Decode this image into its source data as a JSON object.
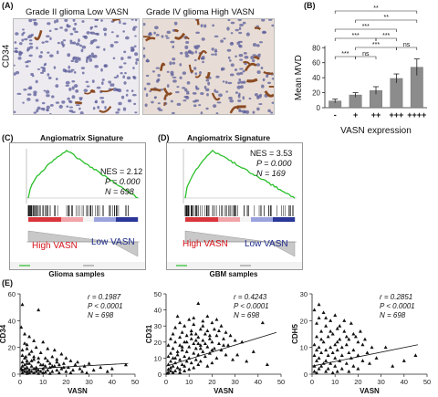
{
  "panels": {
    "A": {
      "letter": "(A)",
      "left_title": "Grade II glioma Low VASN",
      "right_title": "Grade IV glioma High VASN",
      "ylabel": "CD34"
    },
    "B": {
      "letter": "(B)"
    },
    "C": {
      "letter": "(C)",
      "title": "Angiomatrix Signature",
      "nes": "NES = 2.12",
      "p": "P = 0.000",
      "n": "N = 698",
      "high": "High VASN",
      "low": "Low VASN",
      "sample": "Glioma samples"
    },
    "D": {
      "letter": "(D)",
      "title": "Angiomatrix Signature",
      "nes": "NES = 3.53",
      "p": "P = 0.000",
      "n": "N = 169",
      "high": "High VASN",
      "low": "Low VASN",
      "sample": "GBM samples"
    },
    "E": {
      "letter": "(E)"
    }
  },
  "chart_data": [
    {
      "type": "bar",
      "categories": [
        "-",
        "+",
        "++",
        "+++",
        "++++"
      ],
      "values": [
        9,
        17,
        23,
        39,
        54
      ],
      "errors": [
        2.5,
        3,
        5,
        6,
        11
      ],
      "ylabel": "Mean MVD",
      "xlabel": "VASN expression",
      "ylim": [
        0,
        80
      ],
      "yticks": [
        0,
        20,
        40,
        60,
        80
      ],
      "significance": [
        {
          "from": 0,
          "to": 1,
          "label": "***"
        },
        {
          "from": 1,
          "to": 2,
          "label": "ns"
        },
        {
          "from": 1,
          "to": 3,
          "label": "***"
        },
        {
          "from": 0,
          "to": 2,
          "label": "***"
        },
        {
          "from": 2,
          "to": 3,
          "label": "***"
        },
        {
          "from": 3,
          "to": 4,
          "label": "ns"
        },
        {
          "from": 0,
          "to": 3,
          "label": "***"
        },
        {
          "from": 1,
          "to": 4,
          "label": "**"
        },
        {
          "from": 0,
          "to": 4,
          "label": "**"
        }
      ]
    },
    {
      "type": "scatter",
      "xlabel": "VASN",
      "ylabel": "CD34",
      "xlim": [
        0,
        50
      ],
      "ylim": [
        0,
        60
      ],
      "xticks": [
        0,
        10,
        20,
        30,
        40,
        50
      ],
      "yticks": [
        0,
        20,
        40,
        60
      ],
      "r": "r = 0.1987",
      "p": "P < 0.0001",
      "n": "N = 698",
      "fit": [
        [
          0,
          3.5
        ],
        [
          47,
          8
        ]
      ],
      "points": [
        [
          1,
          52
        ],
        [
          8,
          48
        ],
        [
          0.5,
          35
        ],
        [
          2,
          30
        ],
        [
          4,
          28
        ],
        [
          6,
          25
        ],
        [
          10,
          24
        ],
        [
          3,
          22
        ],
        [
          7,
          20
        ],
        [
          12,
          19
        ],
        [
          15,
          18
        ],
        [
          5,
          17
        ],
        [
          9,
          16
        ],
        [
          18,
          15
        ],
        [
          1,
          14
        ],
        [
          2.5,
          13
        ],
        [
          14,
          13
        ],
        [
          20,
          12
        ],
        [
          11,
          12
        ],
        [
          6,
          11
        ],
        [
          16,
          11
        ],
        [
          22,
          10
        ],
        [
          3,
          10
        ],
        [
          8,
          9
        ],
        [
          25,
          9
        ],
        [
          1,
          9
        ],
        [
          13,
          8
        ],
        [
          4,
          8
        ],
        [
          19,
          8
        ],
        [
          30,
          8
        ],
        [
          2,
          7
        ],
        [
          9,
          7
        ],
        [
          17,
          7
        ],
        [
          24,
          7
        ],
        [
          5,
          6
        ],
        [
          11,
          6
        ],
        [
          28,
          6
        ],
        [
          1,
          6
        ],
        [
          15,
          6
        ],
        [
          3,
          5
        ],
        [
          7,
          5
        ],
        [
          21,
          5
        ],
        [
          13,
          5
        ],
        [
          35,
          5
        ],
        [
          2,
          4
        ],
        [
          6,
          4
        ],
        [
          10,
          4
        ],
        [
          18,
          4
        ],
        [
          26,
          4
        ],
        [
          0.5,
          4
        ],
        [
          4,
          3
        ],
        [
          8,
          3
        ],
        [
          12,
          3
        ],
        [
          16,
          3
        ],
        [
          23,
          3
        ],
        [
          32,
          3
        ],
        [
          1,
          3
        ],
        [
          3,
          2
        ],
        [
          5,
          2
        ],
        [
          9,
          2
        ],
        [
          14,
          2
        ],
        [
          20,
          2
        ],
        [
          27,
          2
        ],
        [
          2,
          2
        ],
        [
          7,
          2
        ],
        [
          11,
          1.5
        ],
        [
          6,
          1
        ],
        [
          1,
          1
        ],
        [
          4,
          1
        ],
        [
          10,
          1
        ],
        [
          17,
          1
        ],
        [
          22,
          1
        ],
        [
          3,
          0.5
        ],
        [
          8,
          0.5
        ],
        [
          13,
          0.5
        ],
        [
          29,
          1
        ],
        [
          40,
          4
        ],
        [
          46,
          7
        ],
        [
          38,
          2
        ],
        [
          2,
          12
        ],
        [
          4,
          15
        ],
        [
          6,
          13
        ],
        [
          8,
          12
        ],
        [
          5,
          10
        ],
        [
          12,
          10
        ],
        [
          16,
          9
        ],
        [
          3,
          8
        ],
        [
          10,
          7
        ],
        [
          14,
          6
        ],
        [
          19,
          5
        ],
        [
          7,
          4
        ],
        [
          1,
          18
        ],
        [
          3,
          19
        ],
        [
          2,
          23
        ]
      ]
    },
    {
      "type": "scatter",
      "xlabel": "VASN",
      "ylabel": "CD31",
      "xlim": [
        0,
        50
      ],
      "ylim": [
        0,
        50
      ],
      "xticks": [
        0,
        10,
        20,
        30,
        40,
        50
      ],
      "yticks": [
        0,
        10,
        20,
        30,
        40,
        50
      ],
      "r": "r = 0.4243",
      "p": "P < 0.0001",
      "n": "N = 698",
      "fit": [
        [
          0,
          5
        ],
        [
          48,
          26
        ]
      ],
      "points": [
        [
          14,
          44
        ],
        [
          5,
          36
        ],
        [
          10,
          34
        ],
        [
          16,
          33
        ],
        [
          12,
          31
        ],
        [
          20,
          32
        ],
        [
          8,
          30
        ],
        [
          24,
          30
        ],
        [
          4,
          29
        ],
        [
          15,
          28
        ],
        [
          21,
          28
        ],
        [
          11,
          27
        ],
        [
          18,
          27
        ],
        [
          7,
          26
        ],
        [
          26,
          26
        ],
        [
          3,
          25
        ],
        [
          13,
          25
        ],
        [
          17,
          25
        ],
        [
          22,
          24
        ],
        [
          9,
          24
        ],
        [
          28,
          24
        ],
        [
          6,
          23
        ],
        [
          14,
          23
        ],
        [
          19,
          22
        ],
        [
          2,
          22
        ],
        [
          11,
          22
        ],
        [
          25,
          22
        ],
        [
          16,
          21
        ],
        [
          30,
          21
        ],
        [
          4,
          20
        ],
        [
          8,
          20
        ],
        [
          20,
          20
        ],
        [
          12,
          19
        ],
        [
          23,
          19
        ],
        [
          1,
          18
        ],
        [
          6,
          18
        ],
        [
          15,
          18
        ],
        [
          27,
          18
        ],
        [
          10,
          17
        ],
        [
          18,
          17
        ],
        [
          3,
          16
        ],
        [
          13,
          16
        ],
        [
          21,
          16
        ],
        [
          7,
          15
        ],
        [
          24,
          15
        ],
        [
          9,
          14
        ],
        [
          16,
          14
        ],
        [
          2,
          13
        ],
        [
          12,
          13
        ],
        [
          19,
          13
        ],
        [
          5,
          12
        ],
        [
          14,
          12
        ],
        [
          26,
          12
        ],
        [
          1,
          11
        ],
        [
          8,
          11
        ],
        [
          17,
          11
        ],
        [
          3,
          10
        ],
        [
          10,
          10
        ],
        [
          22,
          10
        ],
        [
          6,
          9
        ],
        [
          13,
          9
        ],
        [
          29,
          9
        ],
        [
          2,
          8
        ],
        [
          9,
          8
        ],
        [
          15,
          8
        ],
        [
          4,
          7
        ],
        [
          11,
          7
        ],
        [
          20,
          7
        ],
        [
          1,
          6
        ],
        [
          7,
          6
        ],
        [
          14,
          6
        ],
        [
          3,
          5
        ],
        [
          8,
          5
        ],
        [
          18,
          5
        ],
        [
          2,
          4
        ],
        [
          5,
          4
        ],
        [
          12,
          4
        ],
        [
          1,
          3
        ],
        [
          6,
          3
        ],
        [
          10,
          3
        ],
        [
          2,
          2
        ],
        [
          4,
          2
        ],
        [
          8,
          2
        ],
        [
          1,
          1
        ],
        [
          3,
          1
        ],
        [
          6,
          1
        ],
        [
          0.5,
          0.5
        ],
        [
          42,
          32
        ],
        [
          38,
          14
        ],
        [
          33,
          20
        ],
        [
          31,
          12
        ],
        [
          35,
          8
        ],
        [
          44,
          6
        ],
        [
          16,
          30
        ],
        [
          12,
          35
        ],
        [
          6,
          32
        ],
        [
          22,
          34
        ],
        [
          18,
          36
        ],
        [
          9,
          20
        ],
        [
          11,
          25
        ],
        [
          13,
          21
        ],
        [
          7,
          17
        ],
        [
          5,
          14
        ],
        [
          17,
          19
        ],
        [
          19,
          24
        ],
        [
          23,
          27
        ],
        [
          15,
          16
        ],
        [
          20,
          15
        ],
        [
          25,
          18
        ],
        [
          4,
          10
        ],
        [
          14,
          19
        ]
      ]
    },
    {
      "type": "scatter",
      "xlabel": "VASN",
      "ylabel": "CDH5",
      "xlim": [
        0,
        50
      ],
      "ylim": [
        0,
        30
      ],
      "xticks": [
        0,
        10,
        20,
        30,
        40,
        50
      ],
      "yticks": [
        0,
        10,
        20,
        30
      ],
      "r": "r = 0.2851",
      "p": "P < 0.0001",
      "n": "N = 698",
      "fit": [
        [
          0,
          3
        ],
        [
          46,
          11
        ]
      ],
      "points": [
        [
          3,
          26
        ],
        [
          1,
          24
        ],
        [
          5,
          23
        ],
        [
          3,
          21
        ],
        [
          8,
          20
        ],
        [
          2,
          19
        ],
        [
          6,
          18
        ],
        [
          11,
          17
        ],
        [
          14,
          16
        ],
        [
          4,
          16
        ],
        [
          9,
          15
        ],
        [
          18,
          15
        ],
        [
          2,
          14
        ],
        [
          7,
          14
        ],
        [
          12,
          13
        ],
        [
          16,
          13
        ],
        [
          20,
          12
        ],
        [
          5,
          12
        ],
        [
          10,
          11
        ],
        [
          1,
          11
        ],
        [
          15,
          11
        ],
        [
          22,
          11
        ],
        [
          3,
          10
        ],
        [
          8,
          10
        ],
        [
          13,
          10
        ],
        [
          26,
          10
        ],
        [
          6,
          9
        ],
        [
          11,
          9
        ],
        [
          18,
          9
        ],
        [
          2,
          9
        ],
        [
          9,
          8
        ],
        [
          16,
          8
        ],
        [
          24,
          8
        ],
        [
          4,
          8
        ],
        [
          7,
          7
        ],
        [
          13,
          7
        ],
        [
          20,
          7
        ],
        [
          1,
          7
        ],
        [
          10,
          6
        ],
        [
          17,
          6
        ],
        [
          28,
          6
        ],
        [
          3,
          6
        ],
        [
          6,
          5
        ],
        [
          12,
          5
        ],
        [
          22,
          5
        ],
        [
          2,
          5
        ],
        [
          8,
          4
        ],
        [
          15,
          4
        ],
        [
          5,
          4
        ],
        [
          25,
          4
        ],
        [
          1,
          3
        ],
        [
          10,
          3
        ],
        [
          18,
          3
        ],
        [
          4,
          3
        ],
        [
          7,
          2
        ],
        [
          13,
          2
        ],
        [
          3,
          2
        ],
        [
          20,
          2
        ],
        [
          1,
          1
        ],
        [
          6,
          1
        ],
        [
          11,
          1
        ],
        [
          2,
          0.5
        ],
        [
          9,
          0.5
        ],
        [
          16,
          1
        ],
        [
          35,
          3
        ],
        [
          40,
          5
        ],
        [
          45,
          7
        ],
        [
          32,
          10
        ],
        [
          14,
          20
        ],
        [
          10,
          22
        ],
        [
          17,
          19
        ],
        [
          6,
          21
        ],
        [
          12,
          18
        ],
        [
          19,
          14
        ],
        [
          21,
          16
        ],
        [
          23,
          13
        ],
        [
          8,
          16
        ],
        [
          15,
          14
        ],
        [
          4,
          13
        ],
        [
          11,
          12
        ]
      ]
    }
  ]
}
